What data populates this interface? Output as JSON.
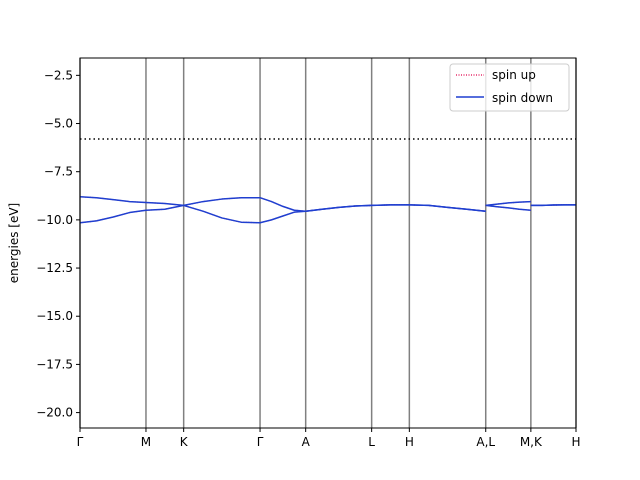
{
  "chart_data": {
    "type": "line",
    "title": "",
    "xlabel": "",
    "ylabel": "energies [eV]",
    "ylim": [
      -20.8,
      -1.6
    ],
    "xlim": [
      0,
      10
    ],
    "grid": false,
    "legend_placement": "top-right",
    "y_ticks": [
      -2.5,
      -5.0,
      -7.5,
      -10.0,
      -12.5,
      -15.0,
      -17.5,
      -20.0
    ],
    "y_tick_labels": [
      "−2.5",
      "−5.0",
      "−7.5",
      "−10.0",
      "−12.5",
      "−15.0",
      "−17.5",
      "−20.0"
    ],
    "k_points": [
      {
        "label": "Γ",
        "x": 0.0
      },
      {
        "label": "M",
        "x": 1.33
      },
      {
        "label": "K",
        "x": 2.09
      },
      {
        "label": "Γ",
        "x": 3.63
      },
      {
        "label": "A",
        "x": 4.55
      },
      {
        "label": "L",
        "x": 5.88
      },
      {
        "label": "H",
        "x": 6.64
      },
      {
        "label": "A,L",
        "x": 8.18
      },
      {
        "label": "M,K",
        "x": 9.09
      },
      {
        "label": "H",
        "x": 10.0
      }
    ],
    "fermi_level": -5.8,
    "series": [
      {
        "name": "spin up",
        "color": "#e0004a",
        "style": "dotted",
        "bands": [
          {
            "x": [
              0.0,
              0.33,
              0.67,
              1.0,
              1.33,
              1.71,
              2.09,
              2.48,
              2.86,
              3.25,
              3.63,
              3.86,
              4.09,
              4.32,
              4.55,
              4.88,
              5.22,
              5.55,
              5.88,
              6.26,
              6.64,
              7.03,
              7.41,
              7.8,
              8.18,
              8.18,
              8.41,
              8.64,
              8.86,
              9.09,
              9.09,
              9.32,
              9.54,
              9.77,
              10.0
            ],
            "y": [
              -8.8,
              -8.85,
              -8.95,
              -9.05,
              -9.1,
              -9.15,
              -9.25,
              -9.05,
              -8.92,
              -8.85,
              -8.85,
              -9.05,
              -9.3,
              -9.5,
              -9.55,
              -9.45,
              -9.35,
              -9.28,
              -9.25,
              -9.22,
              -9.22,
              -9.25,
              -9.35,
              -9.45,
              -9.55,
              -9.25,
              -9.18,
              -9.12,
              -9.08,
              -9.05,
              -9.25,
              -9.25,
              -9.23,
              -9.22,
              -9.22
            ]
          },
          {
            "x": [
              0.0,
              0.33,
              0.67,
              1.0,
              1.33,
              1.71,
              2.09,
              2.48,
              2.86,
              3.25,
              3.63,
              3.86,
              4.09,
              4.32,
              4.55,
              4.88,
              5.22,
              5.55,
              5.88,
              6.26,
              6.64,
              7.03,
              7.41,
              7.8,
              8.18,
              8.18,
              8.41,
              8.64,
              8.86,
              9.09,
              9.09,
              9.32,
              9.54,
              9.77,
              10.0
            ],
            "y": [
              -10.15,
              -10.05,
              -9.85,
              -9.62,
              -9.5,
              -9.45,
              -9.25,
              -9.55,
              -9.9,
              -10.12,
              -10.15,
              -10.0,
              -9.8,
              -9.6,
              -9.55,
              -9.45,
              -9.35,
              -9.28,
              -9.25,
              -9.22,
              -9.22,
              -9.25,
              -9.35,
              -9.45,
              -9.55,
              -9.25,
              -9.32,
              -9.38,
              -9.45,
              -9.5,
              -9.25,
              -9.25,
              -9.23,
              -9.22,
              -9.22
            ]
          }
        ]
      },
      {
        "name": "spin down",
        "color": "#1f3fd0",
        "style": "solid",
        "bands": [
          {
            "x": [
              0.0,
              0.33,
              0.67,
              1.0,
              1.33,
              1.71,
              2.09,
              2.48,
              2.86,
              3.25,
              3.63,
              3.86,
              4.09,
              4.32,
              4.55,
              4.88,
              5.22,
              5.55,
              5.88,
              6.26,
              6.64,
              7.03,
              7.41,
              7.8,
              8.18,
              8.18,
              8.41,
              8.64,
              8.86,
              9.09,
              9.09,
              9.32,
              9.54,
              9.77,
              10.0
            ],
            "y": [
              -8.8,
              -8.85,
              -8.95,
              -9.05,
              -9.1,
              -9.15,
              -9.25,
              -9.05,
              -8.92,
              -8.85,
              -8.85,
              -9.05,
              -9.3,
              -9.5,
              -9.55,
              -9.45,
              -9.35,
              -9.28,
              -9.25,
              -9.22,
              -9.22,
              -9.25,
              -9.35,
              -9.45,
              -9.55,
              -9.25,
              -9.18,
              -9.12,
              -9.08,
              -9.05,
              -9.25,
              -9.25,
              -9.23,
              -9.22,
              -9.22
            ]
          },
          {
            "x": [
              0.0,
              0.33,
              0.67,
              1.0,
              1.33,
              1.71,
              2.09,
              2.48,
              2.86,
              3.25,
              3.63,
              3.86,
              4.09,
              4.32,
              4.55,
              4.88,
              5.22,
              5.55,
              5.88,
              6.26,
              6.64,
              7.03,
              7.41,
              7.8,
              8.18,
              8.18,
              8.41,
              8.64,
              8.86,
              9.09,
              9.09,
              9.32,
              9.54,
              9.77,
              10.0
            ],
            "y": [
              -10.15,
              -10.05,
              -9.85,
              -9.62,
              -9.5,
              -9.45,
              -9.25,
              -9.55,
              -9.9,
              -10.12,
              -10.15,
              -10.0,
              -9.8,
              -9.6,
              -9.55,
              -9.45,
              -9.35,
              -9.28,
              -9.25,
              -9.22,
              -9.22,
              -9.25,
              -9.35,
              -9.45,
              -9.55,
              -9.25,
              -9.32,
              -9.38,
              -9.45,
              -9.5,
              -9.25,
              -9.25,
              -9.23,
              -9.22,
              -9.22
            ]
          }
        ]
      }
    ],
    "colors": {
      "axis": "#000000",
      "k_line": "#808080",
      "fermi_line": "#000000",
      "legend_border": "#cccccc"
    }
  }
}
